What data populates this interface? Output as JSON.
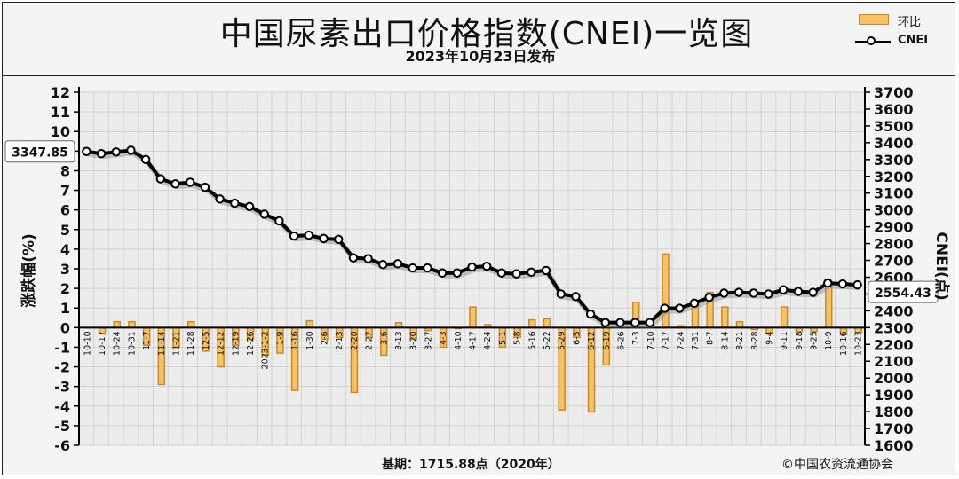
{
  "title": "中国尿素出口价格指数(CNEI)一览图",
  "subtitle": "2023年10月23日发布",
  "legend": {
    "bar_label": "环比",
    "line_label": "CNEI"
  },
  "footer": {
    "base": "基期：1715.88点（2020年）",
    "copyright": "©中国农资流通协会"
  },
  "colors": {
    "bar_fill": "#f6c267",
    "bar_edge": "#c98a2b",
    "line": "#000000",
    "grid": "#d2d2d2",
    "plot_bg": "#ececec"
  },
  "chart_data": {
    "type": "bar+line",
    "categories": [
      "10-10",
      "10-17",
      "10-24",
      "10-31",
      "11-7",
      "11-14",
      "11-21",
      "11-28",
      "12-5",
      "12-12",
      "12-19",
      "12-26",
      "2023-1-2",
      "1-9",
      "1-16",
      "1-30",
      "2-6",
      "2-13",
      "2-20",
      "2-27",
      "3-6",
      "3-13",
      "3-20",
      "3-27",
      "4-3",
      "4-10",
      "4-17",
      "4-24",
      "5-1",
      "5-8",
      "5-16",
      "5-22",
      "5-29",
      "6-5",
      "6-12",
      "6-19",
      "6-26",
      "7-3",
      "7-10",
      "7-17",
      "7-24",
      "7-31",
      "8-7",
      "8-14",
      "8-21",
      "8-28",
      "9-4",
      "9-11",
      "9-18",
      "9-25",
      "10-9",
      "10-16",
      "10-23"
    ],
    "y_left": {
      "label": "涨跌幅(%)",
      "range": [
        -6,
        12
      ],
      "ticks": [
        -6,
        -5,
        -4,
        -3,
        -2,
        -1,
        0,
        1,
        2,
        3,
        4,
        5,
        6,
        7,
        8,
        9,
        10,
        11,
        12
      ]
    },
    "y_right": {
      "label": "CNEI(点)",
      "range": [
        1600,
        3700
      ],
      "ticks": [
        1600,
        1700,
        1800,
        1900,
        2000,
        2100,
        2200,
        2300,
        2400,
        2500,
        2600,
        2700,
        2800,
        2900,
        3000,
        3100,
        3200,
        3300,
        3400,
        3500,
        3600,
        3700
      ]
    },
    "series": [
      {
        "name": "环比",
        "type": "bar",
        "axis": "left",
        "values": [
          0,
          -0.3,
          0.3,
          0.3,
          -0.9,
          -2.9,
          -1.0,
          0.3,
          -1.2,
          -2.0,
          -0.9,
          -0.6,
          -1.4,
          -1.3,
          -3.2,
          0.35,
          -0.6,
          -0.5,
          -3.3,
          -0.5,
          -1.4,
          0.25,
          -0.6,
          -0.15,
          -1.0,
          -0.05,
          1.05,
          0.15,
          -1.0,
          -0.5,
          0.4,
          0.45,
          -4.2,
          -0.5,
          -4.3,
          -1.9,
          0,
          1.3,
          0,
          3.75,
          0.1,
          1.2,
          1.8,
          1.05,
          0.3,
          -0.1,
          -0.3,
          1.05,
          -0.2,
          -0.2,
          2.2,
          -0.35,
          -0.25
        ]
      },
      {
        "name": "CNEI",
        "type": "line",
        "axis": "right",
        "values": [
          3347.85,
          3335,
          3345,
          3355,
          3300,
          3185,
          3155,
          3165,
          3135,
          3065,
          3040,
          3020,
          2975,
          2935,
          2845,
          2850,
          2830,
          2825,
          2715,
          2710,
          2675,
          2680,
          2655,
          2655,
          2625,
          2625,
          2660,
          2665,
          2625,
          2620,
          2630,
          2640,
          2500,
          2485,
          2380,
          2330,
          2330,
          2330,
          2330,
          2415,
          2415,
          2445,
          2480,
          2505,
          2510,
          2505,
          2500,
          2525,
          2515,
          2510,
          2565,
          2560,
          2554.43
        ]
      }
    ],
    "annotations": {
      "first_value": "3347.85",
      "last_value": "2554.43"
    },
    "grid": true
  }
}
